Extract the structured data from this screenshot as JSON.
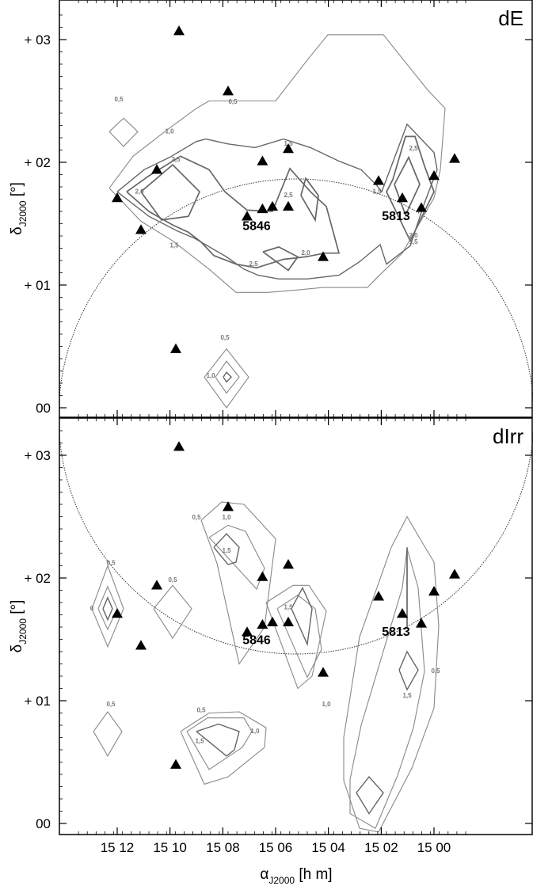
{
  "chart_data": [
    {
      "type": "contour",
      "panel_label": "dE",
      "xlabel_sym": "α",
      "xlabel_sub": "J2000",
      "xlabel_unit": " [h m]",
      "ylabel_sym": "δ",
      "ylabel_sub": "J2000",
      "ylabel_unit": " [°]",
      "x_ticks": [],
      "y_ticks": [
        {
          "label": "+ 03",
          "value": 3
        },
        {
          "label": "+ 02",
          "value": 2
        },
        {
          "label": "+ 01",
          "value": 1
        },
        {
          "label": "00",
          "value": 0
        }
      ],
      "ylim": [
        -0.08,
        3.3
      ],
      "galaxy_labels": [
        {
          "text": "5846",
          "x": 15.112,
          "y": 1.45
        },
        {
          "text": "5813",
          "x": 15.024,
          "y": 1.53
        }
      ],
      "points": [
        {
          "x": 15.161,
          "y": 3.07
        },
        {
          "x": 15.13,
          "y": 2.58
        },
        {
          "x": 15.175,
          "y": 1.94
        },
        {
          "x": 15.2,
          "y": 1.71
        },
        {
          "x": 15.185,
          "y": 1.45
        },
        {
          "x": 15.163,
          "y": 0.48
        },
        {
          "x": 15.1083,
          "y": 2.01
        },
        {
          "x": 15.092,
          "y": 2.11
        },
        {
          "x": 15.118,
          "y": 1.56
        },
        {
          "x": 15.1083,
          "y": 1.62
        },
        {
          "x": 15.102,
          "y": 1.64
        },
        {
          "x": 15.092,
          "y": 1.64
        },
        {
          "x": 15.07,
          "y": 1.23
        },
        {
          "x": 15.035,
          "y": 1.85
        },
        {
          "x": 15.02,
          "y": 1.71
        },
        {
          "x": 15.008,
          "y": 1.63
        },
        {
          "x": 15.0,
          "y": 1.89
        },
        {
          "x": 14.987,
          "y": 2.03
        }
      ],
      "contours": [
        {
          "level": 0.5,
          "x": [
            15.205,
            15.196,
            15.187,
            15.196,
            15.205
          ],
          "y": [
            2.25,
            2.36,
            2.25,
            2.13,
            2.25
          ]
        },
        {
          "level": 0.5,
          "x": [
            15.145,
            15.131,
            15.117,
            15.131,
            15.145
          ],
          "y": [
            0.25,
            0.48,
            0.25,
            0.0,
            0.25
          ]
        },
        {
          "level": 1.0,
          "x": [
            15.138,
            15.131,
            15.123,
            15.131,
            15.138
          ],
          "y": [
            0.25,
            0.38,
            0.25,
            0.12,
            0.25
          ]
        },
        {
          "level": 1.5,
          "x": [
            15.133,
            15.131,
            15.128,
            15.131,
            15.133
          ],
          "y": [
            0.25,
            0.29,
            0.25,
            0.21,
            0.25
          ]
        },
        {
          "level": 1.0,
          "x": [
            15.205,
            15.19,
            15.17,
            15.15,
            15.142,
            15.13,
            15.1,
            15.079,
            15.067,
            15.052,
            15.032,
            15.004,
            14.993,
            14.996,
            15.0,
            15.02,
            15.036,
            15.042,
            15.07,
            15.086,
            15.105,
            15.114,
            15.125,
            15.142,
            15.165,
            15.185,
            15.205
          ],
          "y": [
            1.79,
            2.05,
            2.25,
            2.44,
            2.5,
            2.5,
            2.5,
            2.85,
            3.04,
            3.04,
            3.04,
            2.59,
            2.44,
            1.94,
            1.71,
            1.26,
            1.06,
            0.98,
            0.98,
            0.96,
            0.94,
            0.94,
            0.94,
            1.13,
            1.36,
            1.52,
            1.79
          ]
        },
        {
          "level": 1.5,
          "x": [
            15.2,
            15.183,
            15.167,
            15.15,
            15.144,
            15.13,
            15.113,
            15.095,
            15.078,
            15.06,
            15.046,
            15.036,
            15.033,
            15.017,
            15.0,
            14.998,
            15.006,
            15.015,
            15.03,
            15.034,
            15.047,
            15.06,
            15.08,
            15.098,
            15.111,
            15.12,
            15.131,
            15.151,
            15.162,
            15.18,
            15.2
          ],
          "y": [
            1.76,
            1.94,
            2.04,
            2.17,
            2.19,
            2.15,
            2.12,
            2.19,
            2.12,
            2.01,
            1.94,
            1.81,
            1.76,
            2.31,
            2.08,
            1.94,
            1.67,
            1.32,
            1.17,
            1.33,
            1.19,
            1.08,
            1.05,
            1.05,
            1.08,
            1.13,
            1.23,
            1.38,
            1.44,
            1.56,
            1.76
          ]
        },
        {
          "level": 2.0,
          "x": [
            15.194,
            15.18,
            15.16,
            15.142,
            15.132,
            15.118,
            15.102,
            15.091,
            15.078,
            15.068,
            15.06,
            15.069,
            15.081,
            15.095,
            15.112,
            15.125,
            15.139,
            15.147,
            15.155,
            15.165,
            15.18,
            15.194
          ],
          "y": [
            1.76,
            1.89,
            2.05,
            1.94,
            1.76,
            1.61,
            1.6,
            1.95,
            1.76,
            1.64,
            1.26,
            1.26,
            1.23,
            1.21,
            1.14,
            1.17,
            1.24,
            1.35,
            1.43,
            1.49,
            1.6,
            1.76
          ]
        },
        {
          "level": 2.0,
          "x": [
            15.026,
            15.018,
            15.012,
            15.006,
            15.0,
            15.015,
            15.03,
            15.026
          ],
          "y": [
            1.86,
            2.21,
            2.21,
            1.97,
            1.76,
            1.36,
            1.76,
            1.86
          ]
        },
        {
          "level": 2.5,
          "x": [
            15.185,
            15.165,
            15.148,
            15.155,
            15.172,
            15.185
          ],
          "y": [
            1.76,
            1.98,
            1.76,
            1.56,
            1.53,
            1.76
          ]
        },
        {
          "level": 2.5,
          "x": [
            15.108,
            15.098,
            15.086,
            15.092,
            15.108
          ],
          "y": [
            1.27,
            1.31,
            1.23,
            1.12,
            1.27
          ]
        },
        {
          "level": 2.5,
          "x": [
            15.084,
            15.081,
            15.073,
            15.075,
            15.084
          ],
          "y": [
            1.73,
            1.87,
            1.73,
            1.53,
            1.73
          ]
        },
        {
          "level": 2.5,
          "x": [
            15.025,
            15.016,
            15.009,
            15.018,
            15.025
          ],
          "y": [
            1.82,
            2.04,
            1.82,
            1.57,
            1.82
          ]
        }
      ],
      "contour_labels": [
        {
          "text": "0,5",
          "x": 15.199,
          "y": 2.51
        },
        {
          "text": "1,0",
          "x": 15.167,
          "y": 2.25
        },
        {
          "text": "2,0",
          "x": 15.186,
          "y": 1.76
        },
        {
          "text": "2,5",
          "x": 15.163,
          "y": 2.02
        },
        {
          "text": "1,5",
          "x": 15.164,
          "y": 1.32
        },
        {
          "text": "0,5",
          "x": 15.127,
          "y": 2.49
        },
        {
          "text": "1,5",
          "x": 15.092,
          "y": 2.15
        },
        {
          "text": "2,5",
          "x": 15.092,
          "y": 1.73
        },
        {
          "text": "2,5",
          "x": 15.114,
          "y": 1.17
        },
        {
          "text": "2,0",
          "x": 15.081,
          "y": 1.26
        },
        {
          "text": "1,5",
          "x": 15.036,
          "y": 1.76
        },
        {
          "text": "2,5",
          "x": 15.013,
          "y": 2.11
        },
        {
          "text": "1,5",
          "x": 15.013,
          "y": 1.35
        },
        {
          "text": "2,0",
          "x": 15.013,
          "y": 1.4
        },
        {
          "text": "0,5",
          "x": 15.132,
          "y": 0.57
        },
        {
          "text": "1,0",
          "x": 15.141,
          "y": 0.26
        }
      ]
    },
    {
      "type": "contour",
      "panel_label": "dIrr",
      "xlabel_sym": "α",
      "xlabel_sub": "J2000",
      "xlabel_unit": " [h m]",
      "ylabel_sym": "δ",
      "ylabel_sub": "J2000",
      "ylabel_unit": " [°]",
      "x_ticks": [
        {
          "label": "15 12",
          "value": 15.2
        },
        {
          "label": "15 10",
          "value": 15.1667
        },
        {
          "label": "15 08",
          "value": 15.1333
        },
        {
          "label": "15 06",
          "value": 15.1
        },
        {
          "label": "15 04",
          "value": 15.0667
        },
        {
          "label": "15 02",
          "value": 15.0333
        },
        {
          "label": "15 00",
          "value": 15.0
        }
      ],
      "y_ticks": [
        {
          "label": "+ 03",
          "value": 3
        },
        {
          "label": "+ 02",
          "value": 2
        },
        {
          "label": "+ 01",
          "value": 1
        },
        {
          "label": "00",
          "value": 0
        }
      ],
      "ylim": [
        -0.08,
        3.3
      ],
      "galaxy_labels": [
        {
          "text": "5846",
          "x": 15.112,
          "y": 1.46
        },
        {
          "text": "5813",
          "x": 15.024,
          "y": 1.53
        }
      ],
      "points": [
        {
          "x": 15.161,
          "y": 3.07
        },
        {
          "x": 15.13,
          "y": 2.58
        },
        {
          "x": 15.175,
          "y": 1.94
        },
        {
          "x": 15.2,
          "y": 1.71
        },
        {
          "x": 15.185,
          "y": 1.45
        },
        {
          "x": 15.163,
          "y": 0.48
        },
        {
          "x": 15.1083,
          "y": 2.01
        },
        {
          "x": 15.092,
          "y": 2.11
        },
        {
          "x": 15.118,
          "y": 1.56
        },
        {
          "x": 15.1083,
          "y": 1.62
        },
        {
          "x": 15.102,
          "y": 1.64
        },
        {
          "x": 15.092,
          "y": 1.64
        },
        {
          "x": 15.07,
          "y": 1.23
        },
        {
          "x": 15.035,
          "y": 1.85
        },
        {
          "x": 15.02,
          "y": 1.71
        },
        {
          "x": 15.008,
          "y": 1.63
        },
        {
          "x": 15.0,
          "y": 1.89
        },
        {
          "x": 14.987,
          "y": 2.03
        }
      ],
      "contours": [
        {
          "level": 0.5,
          "x": [
            15.216,
            15.206,
            15.196,
            15.206,
            15.216
          ],
          "y": [
            1.75,
            2.1,
            1.75,
            1.44,
            1.75
          ]
        },
        {
          "level": 1.0,
          "x": [
            15.212,
            15.206,
            15.2,
            15.206,
            15.212
          ],
          "y": [
            1.75,
            1.93,
            1.75,
            1.58,
            1.75
          ]
        },
        {
          "level": 1.5,
          "x": [
            15.209,
            15.206,
            15.203,
            15.206,
            15.209
          ],
          "y": [
            1.75,
            1.84,
            1.75,
            1.66,
            1.75
          ]
        },
        {
          "level": 0.5,
          "x": [
            15.177,
            15.165,
            15.153,
            15.165,
            15.177
          ],
          "y": [
            1.75,
            1.94,
            1.75,
            1.51,
            1.75
          ]
        },
        {
          "level": 0.5,
          "x": [
            15.215,
            15.206,
            15.197,
            15.206,
            15.215
          ],
          "y": [
            0.75,
            0.91,
            0.75,
            0.55,
            0.75
          ]
        },
        {
          "level": 0.5,
          "x": [
            15.147,
            15.134,
            15.12,
            15.1,
            15.107,
            15.123,
            15.137,
            15.147
          ],
          "y": [
            2.47,
            2.62,
            2.6,
            2.32,
            1.6,
            1.3,
            2.12,
            2.47
          ]
        },
        {
          "level": 1.0,
          "x": [
            15.142,
            15.13,
            15.119,
            15.107,
            15.112,
            15.129,
            15.142
          ],
          "y": [
            2.33,
            2.43,
            2.38,
            2.08,
            1.91,
            2.15,
            2.33
          ]
        },
        {
          "level": 1.5,
          "x": [
            15.139,
            15.131,
            15.123,
            15.125,
            15.13,
            15.139
          ],
          "y": [
            2.25,
            2.36,
            2.25,
            2.13,
            2.11,
            2.25
          ]
        },
        {
          "level": 0.5,
          "x": [
            15.106,
            15.089,
            15.079,
            15.068,
            15.077,
            15.086,
            15.106
          ],
          "y": [
            1.8,
            1.94,
            1.94,
            1.73,
            1.2,
            1.1,
            1.8
          ]
        },
        {
          "level": 1.0,
          "x": [
            15.099,
            15.086,
            15.075,
            15.071,
            15.08,
            15.099
          ],
          "y": [
            1.75,
            1.86,
            1.75,
            1.42,
            1.19,
            1.75
          ]
        },
        {
          "level": 1.5,
          "x": [
            15.09,
            15.083,
            15.077,
            15.08,
            15.09
          ],
          "y": [
            1.75,
            1.92,
            1.75,
            1.46,
            1.75
          ]
        },
        {
          "level": 0.5,
          "x": [
            15.16,
            15.142,
            15.123,
            15.106,
            15.107,
            15.13,
            15.145,
            15.16
          ],
          "y": [
            0.75,
            0.9,
            0.91,
            0.78,
            0.62,
            0.38,
            0.32,
            0.75
          ]
        },
        {
          "level": 1.0,
          "x": [
            15.156,
            15.143,
            15.12,
            15.115,
            15.121,
            15.142,
            15.156
          ],
          "y": [
            0.75,
            0.86,
            0.86,
            0.75,
            0.62,
            0.44,
            0.75
          ]
        },
        {
          "level": 1.5,
          "x": [
            15.15,
            15.136,
            15.123,
            15.126,
            15.131,
            15.15
          ],
          "y": [
            0.75,
            0.81,
            0.75,
            0.6,
            0.55,
            0.75
          ]
        },
        {
          "level": 0.5,
          "x": [
            15.027,
            15.017,
            15.007,
            15.0,
            14.997,
            15.0,
            15.014,
            15.035,
            15.047,
            15.057,
            15.057,
            15.047,
            15.027
          ],
          "y": [
            2.25,
            2.5,
            2.28,
            2.13,
            1.61,
            0.94,
            0.45,
            -0.07,
            -0.04,
            0.35,
            0.7,
            1.52,
            2.25
          ]
        },
        {
          "level": 1.0,
          "x": [
            15.02,
            15.017,
            15.01,
            15.006,
            15.013,
            15.023,
            15.037,
            15.053,
            15.053,
            15.046,
            15.02
          ],
          "y": [
            1.92,
            2.24,
            1.92,
            1.24,
            0.78,
            0.39,
            -0.04,
            0.08,
            0.36,
            0.8,
            1.92
          ]
        },
        {
          "level": 1.5,
          "x": [
            15.022,
            15.017,
            15.01,
            15.017,
            15.022
          ],
          "y": [
            1.25,
            1.4,
            1.25,
            1.09,
            1.25
          ]
        },
        {
          "level": 1.5,
          "x": [
            15.049,
            15.041,
            15.032,
            15.041,
            15.049
          ],
          "y": [
            0.25,
            0.38,
            0.25,
            0.08,
            0.25
          ]
        },
        {
          "level": 2.0,
          "x": [
            15.017,
            15.017
          ],
          "y": [
            2.25,
            1.6
          ]
        }
      ],
      "contour_labels": [
        {
          "text": "0,5",
          "x": 15.204,
          "y": 2.12
        },
        {
          "text": "0",
          "x": 15.216,
          "y": 1.75
        },
        {
          "text": "0,5",
          "x": 15.165,
          "y": 1.98
        },
        {
          "text": "0,5",
          "x": 15.204,
          "y": 0.97
        },
        {
          "text": "0,5",
          "x": 15.15,
          "y": 2.49
        },
        {
          "text": "1,0",
          "x": 15.131,
          "y": 2.49
        },
        {
          "text": "1,5",
          "x": 15.131,
          "y": 2.22
        },
        {
          "text": "1,5",
          "x": 15.092,
          "y": 1.76
        },
        {
          "text": "0,5",
          "x": 15.147,
          "y": 0.92
        },
        {
          "text": "1,5",
          "x": 15.148,
          "y": 0.67
        },
        {
          "text": "1,0",
          "x": 15.113,
          "y": 0.75
        },
        {
          "text": "1,0",
          "x": 15.068,
          "y": 0.97
        },
        {
          "text": "0,5",
          "x": 14.999,
          "y": 1.24
        },
        {
          "text": "1,5",
          "x": 15.017,
          "y": 1.04
        }
      ]
    }
  ]
}
